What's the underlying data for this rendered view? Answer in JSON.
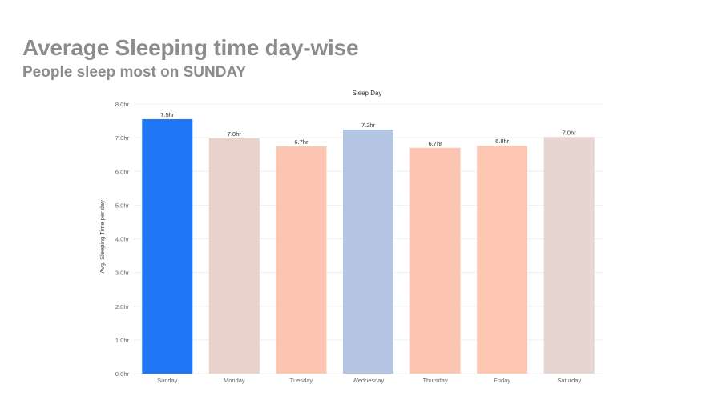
{
  "header": {
    "title": "Average Sleeping time day-wise",
    "subtitle": "People sleep most on SUNDAY"
  },
  "chart_data": {
    "type": "bar",
    "title": "Sleep Day",
    "xlabel": "",
    "ylabel": "Avg. Sleeping Time per day",
    "categories": [
      "Sunday",
      "Monday",
      "Tuesday",
      "Wednesday",
      "Thursday",
      "Friday",
      "Saturday"
    ],
    "values": [
      7.55,
      6.98,
      6.74,
      7.24,
      6.7,
      6.76,
      7.02
    ],
    "data_labels": [
      "7.5hr",
      "7.0hr",
      "6.7hr",
      "7.2hr",
      "6.7hr",
      "6.8hr",
      "7.0hr"
    ],
    "colors": [
      "#1f77f5",
      "#e8d2cb",
      "#fcc5b1",
      "#b3c5e3",
      "#fcc5b1",
      "#fcc6b2",
      "#e6d5d1"
    ],
    "y_ticks": [
      0,
      1,
      2,
      3,
      4,
      5,
      6,
      7,
      8
    ],
    "y_tick_labels": [
      "0.0hr",
      "1.0hr",
      "2.0hr",
      "3.0hr",
      "4.0hr",
      "5.0hr",
      "6.0hr",
      "7.0hr",
      "8.0hr"
    ],
    "ylim": [
      0,
      8
    ],
    "grid": true,
    "legend": "none"
  }
}
